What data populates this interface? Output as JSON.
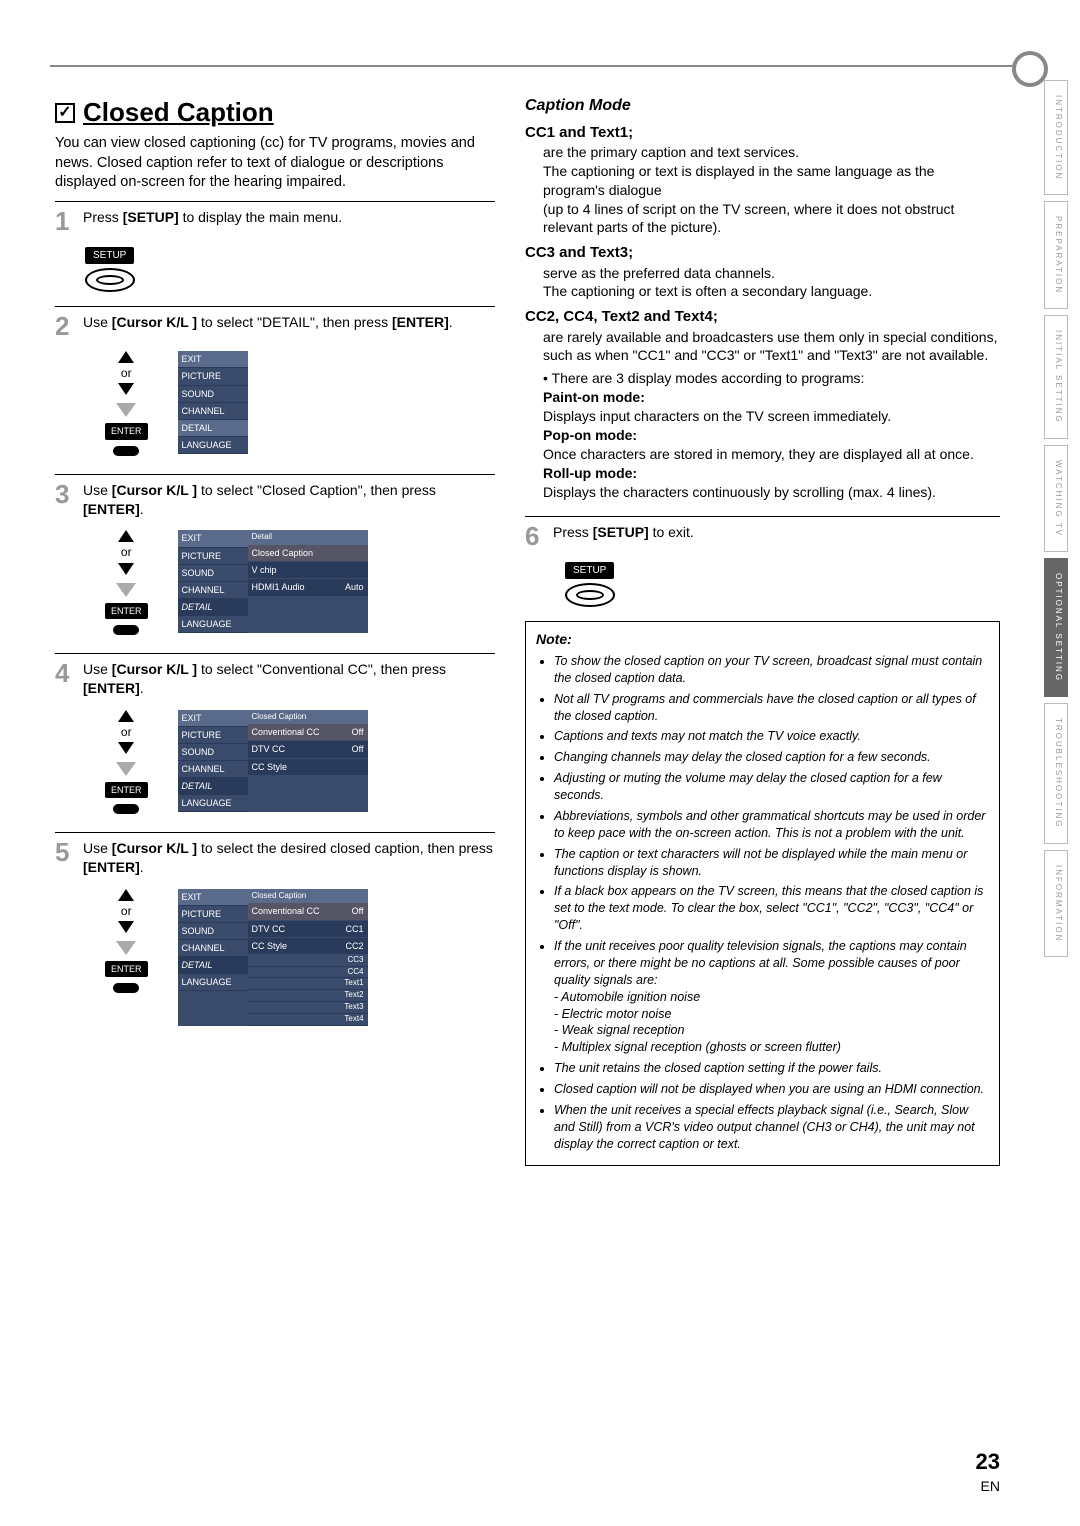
{
  "page": {
    "number": "23",
    "lang": "EN"
  },
  "title": "Closed Caption",
  "intro": "You can view closed captioning (cc) for TV programs, movies and news. Closed caption refer to text of dialogue or descriptions displayed on-screen for the hearing impaired.",
  "steps": {
    "s1": "Press [SETUP] to display the main menu.",
    "s2": "Use [Cursor K/L ] to select \"DETAIL\", then press [ENTER].",
    "s3": "Use [Cursor K/L ] to select \"Closed Caption\", then press [ENTER].",
    "s4": "Use [Cursor K/L ] to select \"Conventional CC\", then press [ENTER].",
    "s5": "Use [Cursor K/L ] to select the desired closed caption, then press [ENTER].",
    "s6": "Press [SETUP] to exit."
  },
  "remote": {
    "setup": "SETUP",
    "enter": "ENTER",
    "or": "or"
  },
  "osd": {
    "menu": {
      "exit": "EXIT",
      "picture": "PICTURE",
      "sound": "SOUND",
      "channel": "CHANNEL",
      "detail": "DETAIL",
      "language": "LANGUAGE"
    },
    "detail_panel": {
      "header": "Detail",
      "closed_caption": "Closed Caption",
      "vchip": "V chip",
      "hdmi_audio": "HDMI1 Audio",
      "hdmi_val": "Auto"
    },
    "cc_panel": {
      "header": "Closed Caption",
      "conv": "Conventional CC",
      "conv_val": "Off",
      "dtv": "DTV CC",
      "dtv_val": "Off",
      "style": "CC Style"
    },
    "cc_options": [
      "Off",
      "CC1",
      "CC2",
      "CC3",
      "CC4",
      "Text1",
      "Text2",
      "Text3",
      "Text4"
    ]
  },
  "caption_mode": {
    "heading": "Caption Mode",
    "cc1": {
      "title": "CC1 and Text1;",
      "body1": "are the primary caption and text services.",
      "body2": "The captioning or text is displayed in the same language as the program's dialogue",
      "body3": "(up to 4 lines of script on the TV screen, where it does not obstruct relevant parts of the picture)."
    },
    "cc3": {
      "title": "CC3 and Text3;",
      "body1": "serve as the preferred data channels.",
      "body2": "The captioning or text is often a secondary language."
    },
    "cc2": {
      "title": "CC2, CC4, Text2 and Text4;",
      "body1": "are rarely available and broadcasters use them only in special conditions, such as when \"CC1\" and \"CC3\" or \"Text1\" and \"Text3\" are not available.",
      "bullet": "There are 3 display modes according to programs:",
      "paint_t": "Paint-on mode:",
      "paint": "Displays input characters on the TV screen immediately.",
      "pop_t": "Pop-on mode:",
      "pop": "Once characters are stored in memory, they are displayed all at once.",
      "roll_t": "Roll-up mode:",
      "roll": "Displays the characters continuously by scrolling (max. 4 lines)."
    }
  },
  "note": {
    "title": "Note:",
    "items": [
      "To show the closed caption on your TV screen, broadcast signal must contain the closed caption data.",
      "Not all TV programs and commercials have the closed caption or all types of the closed caption.",
      "Captions and texts may not match the TV voice exactly.",
      "Changing channels may delay the closed caption for a few seconds.",
      "Adjusting or muting the volume may delay the closed caption for a few seconds.",
      "Abbreviations, symbols and other grammatical shortcuts may be used in order to keep pace with the on-screen action. This is not a problem with the unit.",
      "The caption or text characters will not be displayed while the main menu or functions display is shown.",
      "If a black box appears on the TV screen, this means that the closed caption is set to the text mode. To clear the box, select \"CC1\", \"CC2\", \"CC3\", \"CC4\" or \"Off\".",
      "If the unit receives poor quality television signals, the captions may contain errors, or there might be no captions at all. Some possible causes of poor quality signals are:\n- Automobile ignition noise\n- Electric motor noise\n- Weak signal reception\n- Multiplex signal reception (ghosts or screen flutter)",
      "The unit retains the closed caption setting if the power fails.",
      "Closed caption will not be displayed when you are using an HDMI connection.",
      "When the unit receives a special effects playback signal (i.e., Search, Slow and Still) from a VCR's video output channel (CH3 or CH4), the unit may not display the correct caption or text."
    ]
  },
  "tabs": [
    "INTRODUCTION",
    "PREPARATION",
    "INITIAL SETTING",
    "WATCHING TV",
    "OPTIONAL SETTING",
    "TROUBLESHOOTING",
    "INFORMATION"
  ],
  "active_tab": 4
}
